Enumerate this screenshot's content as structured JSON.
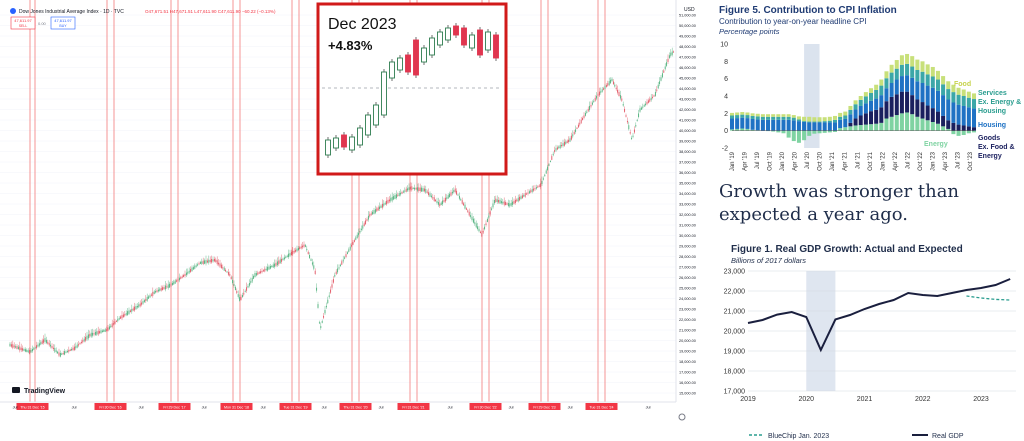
{
  "tradingview": {
    "symbol_title": "Dow Jones Industrial Average Index · 1D · TVC",
    "ohlc_text": "O47,671.51 H47,671.51 L47,611.90 C47,611.90 −60.22 (−0.13%)",
    "sell_box": {
      "price": "47,611.97",
      "label": "SELL"
    },
    "buy_box": {
      "price": "47,611.97",
      "label": "BUY"
    },
    "logo_text": "TradingView",
    "price_axis_label": "USD",
    "price_ticks": [
      "51,000.00",
      "50,000.00",
      "49,000.00",
      "48,000.00",
      "47,000.00",
      "46,000.00",
      "45,000.00",
      "44,000.00",
      "43,000.00",
      "42,000.00",
      "41,000.00",
      "40,000.00",
      "39,000.00",
      "38,000.00",
      "37,000.00",
      "36,000.00",
      "35,000.00",
      "34,000.00",
      "33,000.00",
      "32,000.00",
      "31,000.00",
      "30,000.00",
      "29,000.00",
      "28,000.00",
      "27,000.00",
      "26,000.00",
      "25,000.00",
      "24,000.00",
      "23,000.00",
      "22,000.00",
      "21,000.00",
      "20,000.00",
      "19,000.00",
      "18,000.00",
      "17,000.00",
      "16,000.00",
      "15,000.00"
    ],
    "marker_labels": [
      "Thu 31 Dec '15",
      "Fri 30 Dec '16",
      "Fri 29 Dec '17",
      "Mon 31 Dec '18",
      "Tue 31 Dec '19",
      "Thu 31 Dec '20",
      "Fri 31 Dec '21",
      "Fri 30 Dec '22",
      "Fri 29 Dec '23",
      "Tue 31 Dec '24"
    ],
    "time_ticks": [
      "Jul",
      "Jul",
      "Jul",
      "Jul",
      "Jul",
      "Jul",
      "Jul",
      "Jul",
      "Jul",
      "Jul",
      "Jul"
    ],
    "settings_icon": "gear-icon"
  },
  "inset": {
    "month": "Dec 2023",
    "change": "+4.83%",
    "border_color": "#d11a1a"
  },
  "cpi_figure": {
    "title": "Figure 5. Contribution to CPI Inflation",
    "subtitle": "Contribution to year-on-year headline CPI",
    "unit": "Percentage points",
    "legend": {
      "food": "Food",
      "services1": "Services",
      "services2": "Ex. Energy &",
      "services3": "Housing",
      "housing": "Housing",
      "goods1": "Goods",
      "goods2": "Ex. Food &",
      "goods3": "Energy",
      "energy": "Energy"
    },
    "colors": {
      "energy": "#7fd3a2",
      "goods": "#1a1f5e",
      "housing": "#1f72c4",
      "services": "#3ca7a8",
      "food": "#c8e07a"
    }
  },
  "chart_data": [
    {
      "type": "area",
      "title": "Figure 5. Contribution to CPI Inflation",
      "subtitle": "Contribution to year-on-year headline CPI",
      "ylabel": "Percentage points",
      "ylim": [
        -2,
        10
      ],
      "yticks": [
        -2,
        0,
        2,
        4,
        6,
        8,
        10
      ],
      "xticks": [
        "Jan '19",
        "Apr '19",
        "Jul '19",
        "Oct '19",
        "Jan '20",
        "Apr '20",
        "Jul '20",
        "Oct '20",
        "Jan '21",
        "Apr '21",
        "Jul '21",
        "Oct '21",
        "Jan '22",
        "Apr '22",
        "Jul '22",
        "Oct '22",
        "Jan '23",
        "Apr '23",
        "Jul '23",
        "Oct '23"
      ],
      "series": [
        {
          "name": "Energy",
          "values": [
            0.15,
            0.2,
            0.25,
            0.2,
            0.1,
            0.05,
            0.0,
            -0.05,
            -0.1,
            -0.2,
            -0.3,
            -0.8,
            -1.2,
            -1.4,
            -1.1,
            -0.6,
            -0.35,
            -0.3,
            -0.25,
            -0.2,
            -0.15,
            0.3,
            0.4,
            0.5,
            0.6,
            0.65,
            0.7,
            0.75,
            0.8,
            0.9,
            1.4,
            1.6,
            1.8,
            2.0,
            2.1,
            1.9,
            1.6,
            1.4,
            1.2,
            1.0,
            0.8,
            0.5,
            0.2,
            -0.4,
            -0.6,
            -0.5,
            -0.3,
            -0.2
          ]
        },
        {
          "name": "Goods Ex. Food & Energy",
          "values": [
            0.0,
            0.0,
            0.0,
            0.0,
            0.0,
            0.0,
            0.0,
            0.0,
            0.0,
            0.0,
            0.0,
            0.0,
            0.0,
            0.0,
            0.0,
            0.0,
            0.0,
            0.0,
            0.0,
            0.0,
            0.0,
            0.0,
            0.0,
            0.4,
            0.8,
            1.1,
            1.3,
            1.5,
            1.6,
            1.8,
            2.0,
            2.3,
            2.4,
            2.5,
            2.4,
            2.2,
            2.0,
            1.9,
            1.7,
            1.6,
            1.4,
            1.2,
            1.0,
            0.9,
            0.7,
            0.6,
            0.5,
            0.4
          ]
        },
        {
          "name": "Housing",
          "values": [
            1.25,
            1.25,
            1.25,
            1.25,
            1.25,
            1.25,
            1.25,
            1.25,
            1.25,
            1.25,
            1.25,
            1.25,
            1.2,
            1.1,
            1.0,
            0.95,
            0.95,
            0.95,
            0.95,
            0.95,
            0.95,
            0.95,
            0.95,
            1.0,
            1.05,
            1.1,
            1.15,
            1.2,
            1.3,
            1.4,
            1.5,
            1.6,
            1.7,
            1.8,
            1.9,
            2.0,
            2.1,
            2.2,
            2.3,
            2.35,
            2.4,
            2.4,
            2.4,
            2.35,
            2.3,
            2.25,
            2.2,
            2.15
          ]
        },
        {
          "name": "Services Ex. Energy & Housing",
          "values": [
            0.35,
            0.35,
            0.35,
            0.35,
            0.35,
            0.35,
            0.35,
            0.35,
            0.35,
            0.35,
            0.35,
            0.35,
            0.3,
            0.2,
            0.1,
            0.1,
            0.1,
            0.1,
            0.15,
            0.2,
            0.3,
            0.35,
            0.4,
            0.5,
            0.6,
            0.7,
            0.8,
            0.9,
            1.0,
            1.1,
            1.15,
            1.2,
            1.25,
            1.3,
            1.3,
            1.3,
            1.3,
            1.3,
            1.3,
            1.3,
            1.3,
            1.25,
            1.2,
            1.2,
            1.15,
            1.15,
            1.1,
            1.1
          ]
        },
        {
          "name": "Food",
          "values": [
            0.3,
            0.3,
            0.3,
            0.3,
            0.3,
            0.3,
            0.3,
            0.3,
            0.3,
            0.3,
            0.3,
            0.3,
            0.3,
            0.35,
            0.5,
            0.55,
            0.5,
            0.5,
            0.45,
            0.45,
            0.45,
            0.45,
            0.45,
            0.45,
            0.45,
            0.45,
            0.5,
            0.55,
            0.6,
            0.7,
            0.8,
            0.9,
            1.0,
            1.1,
            1.15,
            1.2,
            1.2,
            1.2,
            1.15,
            1.1,
            1.0,
            0.95,
            0.9,
            0.85,
            0.8,
            0.75,
            0.7,
            0.65
          ]
        }
      ]
    },
    {
      "type": "line",
      "title": "Figure 1. Real GDP Growth: Actual and Expected",
      "subtitle": "Billions of 2017 dollars",
      "ylim": [
        17000,
        23000
      ],
      "yticks": [
        "17,000",
        "18,000",
        "19,000",
        "20,000",
        "21,000",
        "22,000",
        "23,000"
      ],
      "xticks": [
        "2019",
        "2020",
        "2021",
        "2022",
        "2023"
      ],
      "x": [
        2019.0,
        2019.25,
        2019.5,
        2019.75,
        2020.0,
        2020.25,
        2020.5,
        2020.75,
        2021.0,
        2021.25,
        2021.5,
        2021.75,
        2022.0,
        2022.25,
        2022.5,
        2022.75,
        2023.0,
        2023.25,
        2023.5
      ],
      "series": [
        {
          "name": "BlueChip Jan. 2023",
          "values": [
            null,
            null,
            null,
            null,
            null,
            null,
            null,
            null,
            null,
            null,
            null,
            null,
            null,
            null,
            null,
            21750,
            21650,
            21580,
            21550
          ]
        },
        {
          "name": "Real GDP",
          "values": [
            20400,
            20550,
            20820,
            20950,
            20700,
            19050,
            20580,
            20800,
            21100,
            21350,
            21550,
            21900,
            21800,
            21750,
            21900,
            22050,
            22150,
            22300,
            22600
          ]
        }
      ]
    }
  ],
  "gdp_figure": {
    "title": "Figure 1. Real GDP Growth: Actual and Expected",
    "subtitle": "Billions of 2017 dollars",
    "legend": [
      "BlueChip Jan. 2023",
      "Real GDP"
    ]
  },
  "headline": "Growth was stronger than expected a year ago."
}
